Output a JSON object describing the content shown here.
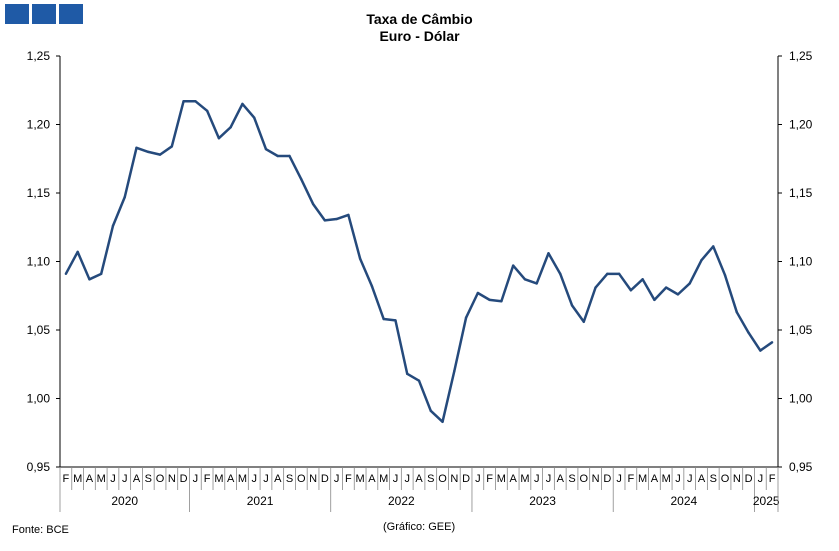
{
  "header": {
    "logo_name": "gee-logo",
    "title_line1": "Taxa de Câmbio",
    "title_line2": "Euro - Dólar"
  },
  "footer": {
    "source": "Fonte: BCE",
    "credit": "(Gráfico: GEE)"
  },
  "chart_data": {
    "type": "line",
    "title": "Taxa de Câmbio Euro - Dólar",
    "xlabel": "",
    "ylabel": "",
    "ylim": [
      0.95,
      1.25
    ],
    "y_ticks": [
      "0,95",
      "1,00",
      "1,05",
      "1,10",
      "1,15",
      "1,20",
      "1,25"
    ],
    "y_ticks_left": [
      "0,95",
      "1,00",
      "1,05",
      "1,10",
      "1,15",
      "1,20",
      "1,25"
    ],
    "grid": false,
    "legend": "none",
    "line_color": "#254a7c",
    "month_labels": [
      "F",
      "M",
      "A",
      "M",
      "J",
      "J",
      "A",
      "S",
      "O",
      "N",
      "D",
      "J",
      "F",
      "M",
      "A",
      "M",
      "J",
      "J",
      "A",
      "S",
      "O",
      "N",
      "D",
      "J",
      "F",
      "M",
      "A",
      "M",
      "J",
      "J",
      "A",
      "S",
      "O",
      "N",
      "D",
      "J",
      "F",
      "M",
      "A",
      "M",
      "J",
      "J",
      "A",
      "S",
      "O",
      "N",
      "D",
      "J",
      "F",
      "M",
      "A",
      "M",
      "J",
      "J",
      "A",
      "S",
      "O",
      "N",
      "D",
      "J",
      "F"
    ],
    "years": [
      {
        "label": "2020",
        "start": 0,
        "end": 11
      },
      {
        "label": "2021",
        "start": 11,
        "end": 23
      },
      {
        "label": "2022",
        "start": 23,
        "end": 35
      },
      {
        "label": "2023",
        "start": 35,
        "end": 47
      },
      {
        "label": "2024",
        "start": 47,
        "end": 59
      },
      {
        "label": "2025",
        "start": 59,
        "end": 61
      }
    ],
    "series": [
      {
        "values": [
          1.091,
          1.107,
          1.087,
          1.091,
          1.126,
          1.147,
          1.183,
          1.18,
          1.178,
          1.184,
          1.217,
          1.217,
          1.21,
          1.19,
          1.198,
          1.215,
          1.205,
          1.182,
          1.177,
          1.177,
          1.16,
          1.142,
          1.13,
          1.131,
          1.134,
          1.102,
          1.082,
          1.058,
          1.057,
          1.018,
          1.013,
          0.991,
          0.983,
          1.02,
          1.059,
          1.077,
          1.072,
          1.071,
          1.097,
          1.087,
          1.084,
          1.106,
          1.091,
          1.068,
          1.056,
          1.081,
          1.091,
          1.091,
          1.079,
          1.087,
          1.072,
          1.081,
          1.076,
          1.084,
          1.101,
          1.111,
          1.09,
          1.063,
          1.048,
          1.035,
          1.041
        ]
      }
    ]
  }
}
